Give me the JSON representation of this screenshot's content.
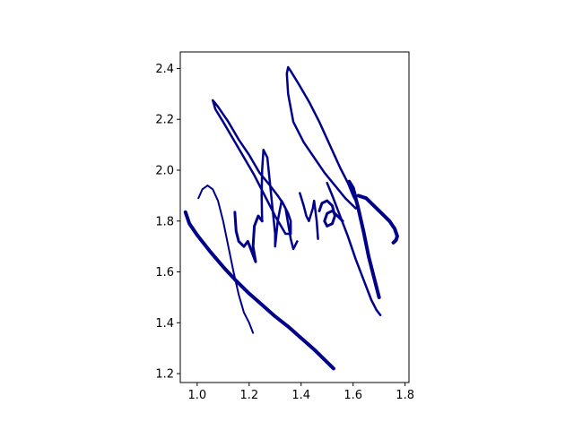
{
  "chart_data": {
    "type": "line",
    "title": "",
    "xlabel": "",
    "ylabel": "",
    "xlim": [
      0.935,
      1.815
    ],
    "ylim": [
      1.165,
      2.465
    ],
    "x_ticks": [
      {
        "value": 1.0,
        "label": "1.0"
      },
      {
        "value": 1.2,
        "label": "1.2"
      },
      {
        "value": 1.4,
        "label": "1.4"
      },
      {
        "value": 1.6,
        "label": "1.6"
      },
      {
        "value": 1.8,
        "label": "1.8"
      }
    ],
    "y_ticks": [
      {
        "value": 1.2,
        "label": "1.2"
      },
      {
        "value": 1.4,
        "label": "1.4"
      },
      {
        "value": 1.6,
        "label": "1.6"
      },
      {
        "value": 1.8,
        "label": "1.8"
      },
      {
        "value": 2.0,
        "label": "2.0"
      },
      {
        "value": 2.2,
        "label": "2.2"
      },
      {
        "value": 2.4,
        "label": "2.4"
      }
    ],
    "grid": false,
    "color": "#00008b",
    "series": [
      {
        "width": 2.0,
        "points": [
          [
            1.005,
            1.89
          ],
          [
            1.02,
            1.925
          ],
          [
            1.04,
            1.94
          ],
          [
            1.06,
            1.925
          ],
          [
            1.08,
            1.88
          ],
          [
            1.1,
            1.8
          ],
          [
            1.12,
            1.7
          ],
          [
            1.14,
            1.6
          ],
          [
            1.16,
            1.51
          ],
          [
            1.18,
            1.44
          ],
          [
            1.2,
            1.4
          ],
          [
            1.215,
            1.36
          ]
        ]
      },
      {
        "width": 4.0,
        "points": [
          [
            0.955,
            1.835
          ],
          [
            0.97,
            1.79
          ],
          [
            1.0,
            1.745
          ],
          [
            1.05,
            1.68
          ],
          [
            1.1,
            1.62
          ],
          [
            1.15,
            1.565
          ],
          [
            1.2,
            1.515
          ],
          [
            1.25,
            1.47
          ],
          [
            1.3,
            1.425
          ],
          [
            1.35,
            1.385
          ],
          [
            1.4,
            1.34
          ],
          [
            1.45,
            1.295
          ],
          [
            1.5,
            1.245
          ],
          [
            1.525,
            1.22
          ]
        ]
      },
      {
        "width": 3.0,
        "points": [
          [
            1.145,
            1.835
          ],
          [
            1.15,
            1.76
          ],
          [
            1.16,
            1.72
          ],
          [
            1.18,
            1.7
          ],
          [
            1.195,
            1.72
          ],
          [
            1.21,
            1.68
          ],
          [
            1.225,
            1.64
          ],
          [
            1.215,
            1.7
          ],
          [
            1.22,
            1.78
          ],
          [
            1.235,
            1.82
          ],
          [
            1.25,
            1.8
          ]
        ]
      },
      {
        "width": 2.5,
        "points": [
          [
            1.25,
            1.8
          ],
          [
            1.248,
            1.9
          ],
          [
            1.25,
            2.0
          ],
          [
            1.255,
            2.08
          ],
          [
            1.27,
            2.05
          ],
          [
            1.28,
            1.95
          ],
          [
            1.29,
            1.85
          ],
          [
            1.3,
            1.75
          ],
          [
            1.3,
            1.7
          ],
          [
            1.31,
            1.8
          ],
          [
            1.325,
            1.88
          ],
          [
            1.34,
            1.85
          ],
          [
            1.35,
            1.79
          ],
          [
            1.36,
            1.73
          ],
          [
            1.37,
            1.69
          ],
          [
            1.385,
            1.72
          ]
        ]
      },
      {
        "width": 2.5,
        "points": [
          [
            1.06,
            2.275
          ],
          [
            1.08,
            2.25
          ],
          [
            1.12,
            2.19
          ],
          [
            1.16,
            2.12
          ],
          [
            1.2,
            2.06
          ],
          [
            1.24,
            1.99
          ],
          [
            1.28,
            1.94
          ],
          [
            1.31,
            1.9
          ],
          [
            1.33,
            1.87
          ],
          [
            1.35,
            1.83
          ],
          [
            1.36,
            1.8
          ],
          [
            1.36,
            1.75
          ],
          [
            1.34,
            1.75
          ],
          [
            1.3,
            1.82
          ],
          [
            1.26,
            1.9
          ],
          [
            1.22,
            1.98
          ],
          [
            1.18,
            2.05
          ],
          [
            1.14,
            2.12
          ],
          [
            1.1,
            2.19
          ],
          [
            1.07,
            2.24
          ],
          [
            1.06,
            2.275
          ]
        ]
      },
      {
        "width": 2.5,
        "points": [
          [
            1.395,
            1.91
          ],
          [
            1.41,
            1.86
          ],
          [
            1.42,
            1.82
          ],
          [
            1.43,
            1.8
          ],
          [
            1.445,
            1.85
          ],
          [
            1.45,
            1.88
          ],
          [
            1.46,
            1.8
          ],
          [
            1.465,
            1.73
          ]
        ]
      },
      {
        "width": 3.0,
        "points": [
          [
            1.47,
            1.84
          ],
          [
            1.48,
            1.87
          ],
          [
            1.5,
            1.88
          ],
          [
            1.52,
            1.86
          ],
          [
            1.53,
            1.82
          ],
          [
            1.52,
            1.79
          ],
          [
            1.5,
            1.78
          ],
          [
            1.49,
            1.8
          ],
          [
            1.5,
            1.83
          ],
          [
            1.52,
            1.84
          ],
          [
            1.54,
            1.82
          ],
          [
            1.56,
            1.8
          ]
        ]
      },
      {
        "width": 2.5,
        "points": [
          [
            1.35,
            2.405
          ],
          [
            1.36,
            2.39
          ],
          [
            1.39,
            2.34
          ],
          [
            1.43,
            2.27
          ],
          [
            1.47,
            2.19
          ],
          [
            1.51,
            2.1
          ],
          [
            1.55,
            2.01
          ],
          [
            1.58,
            1.95
          ],
          [
            1.6,
            1.9
          ],
          [
            1.62,
            1.86
          ],
          [
            1.61,
            1.85
          ],
          [
            1.57,
            1.89
          ],
          [
            1.53,
            1.94
          ],
          [
            1.49,
            1.99
          ],
          [
            1.45,
            2.05
          ],
          [
            1.41,
            2.11
          ],
          [
            1.37,
            2.19
          ],
          [
            1.35,
            2.3
          ],
          [
            1.345,
            2.38
          ],
          [
            1.35,
            2.405
          ]
        ]
      },
      {
        "width": 2.5,
        "points": [
          [
            1.5,
            1.95
          ],
          [
            1.52,
            1.9
          ],
          [
            1.55,
            1.82
          ],
          [
            1.58,
            1.74
          ],
          [
            1.61,
            1.65
          ],
          [
            1.64,
            1.57
          ],
          [
            1.67,
            1.49
          ],
          [
            1.69,
            1.45
          ],
          [
            1.705,
            1.43
          ]
        ]
      },
      {
        "width": 4.0,
        "points": [
          [
            1.585,
            1.955
          ],
          [
            1.6,
            1.93
          ],
          [
            1.62,
            1.85
          ],
          [
            1.64,
            1.76
          ],
          [
            1.66,
            1.66
          ],
          [
            1.68,
            1.58
          ],
          [
            1.7,
            1.5
          ]
        ]
      },
      {
        "width": 4.0,
        "points": [
          [
            1.62,
            1.9
          ],
          [
            1.65,
            1.89
          ],
          [
            1.68,
            1.86
          ],
          [
            1.71,
            1.83
          ],
          [
            1.74,
            1.8
          ],
          [
            1.76,
            1.77
          ],
          [
            1.77,
            1.74
          ],
          [
            1.765,
            1.725
          ],
          [
            1.755,
            1.715
          ]
        ]
      }
    ]
  }
}
